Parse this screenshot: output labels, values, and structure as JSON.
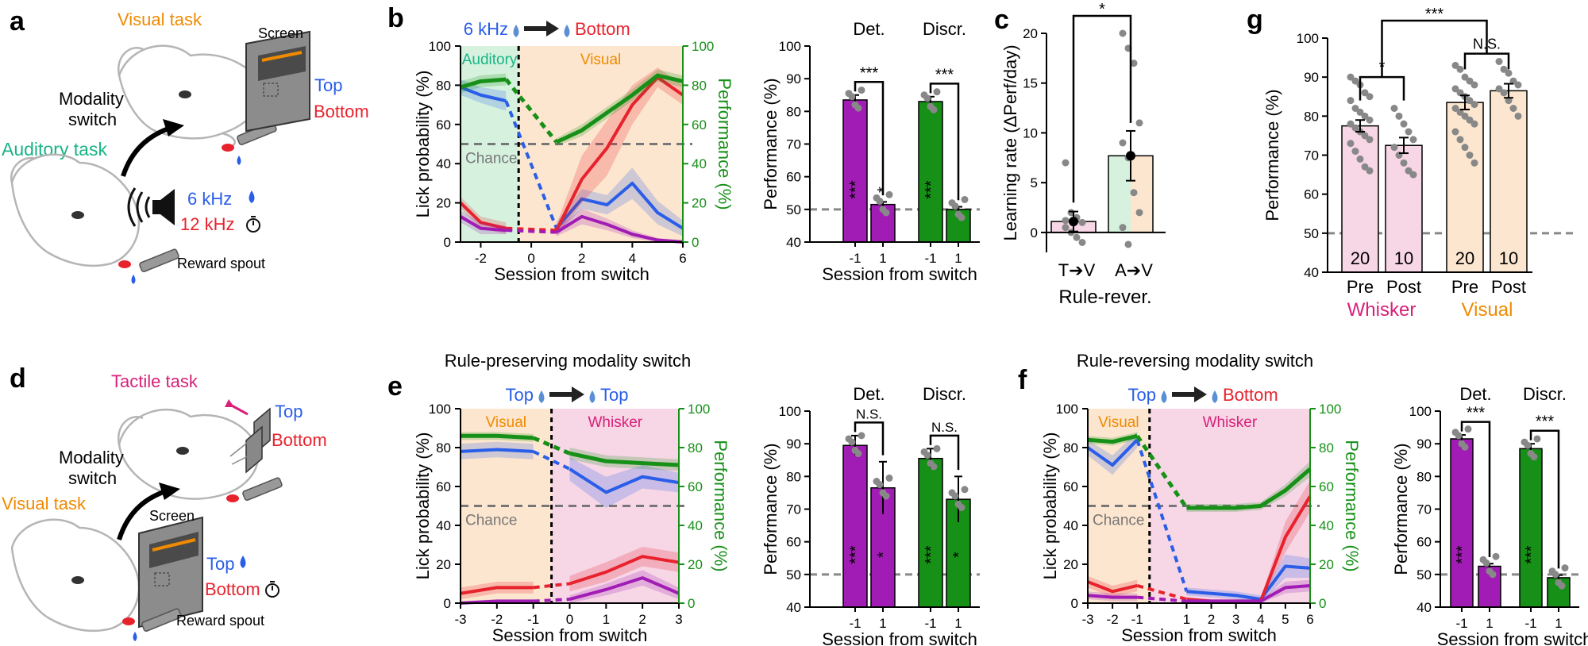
{
  "panel_letters": [
    "a",
    "b",
    "c",
    "d",
    "e",
    "f",
    "g"
  ],
  "colors": {
    "blue": "#2a5ee8",
    "red": "#e8222c",
    "green": "#179018",
    "purple": "#a11cb4",
    "orange": "#f08a00",
    "teal": "#19b486",
    "pink": "#d8207a",
    "gray": "#888888",
    "bg_aud": "#d6f2df",
    "bg_vis": "#fde6cf",
    "bg_whk": "#f7d6e6"
  },
  "schematic_a": {
    "visual_task": "Visual task",
    "screen": "Screen",
    "top": "Top",
    "bottom": "Bottom",
    "modality_switch_1": "Modality",
    "modality_switch_2": "switch",
    "auditory_task": "Auditory task",
    "tone_6k": "6 kHz",
    "tone_12k": "12 kHz",
    "reward_spout": "Reward spout"
  },
  "schematic_d": {
    "tactile_task": "Tactile task",
    "top": "Top",
    "bottom": "Bottom",
    "modality_switch_1": "Modality",
    "modality_switch_2": "switch",
    "visual_task": "Visual task",
    "screen": "Screen",
    "reward_spout": "Reward spout"
  },
  "legend_b": {
    "left": "6 kHz",
    "right": "Bottom"
  },
  "legend_e": {
    "left": "Top",
    "right": "Top"
  },
  "legend_f": {
    "left": "Top",
    "right": "Bottom"
  },
  "chart_data": [
    {
      "id": "b-line",
      "type": "line",
      "title": "",
      "xlabel": "Session from switch",
      "ylabel": "Lick probability (%)",
      "y2label": "Performance (%)",
      "xlim": [
        -2.8,
        6
      ],
      "ylim": [
        0,
        100
      ],
      "xticks": [
        "-2",
        "0",
        "2",
        "4",
        "6"
      ],
      "xtick_values": [
        -2,
        0,
        2,
        4,
        6
      ],
      "yticks": [
        "0",
        "20",
        "40",
        "60",
        "80",
        "100"
      ],
      "switch_at": -0.5,
      "regions": [
        {
          "label": "Auditory",
          "from": -2.8,
          "to": -0.5,
          "color": "bg_aud"
        },
        {
          "label": "Visual",
          "from": -0.5,
          "to": 6,
          "color": "bg_vis"
        }
      ],
      "chance_label": "Chance",
      "chance": 50,
      "series": [
        {
          "name": "Lick 6 kHz",
          "color": "blue",
          "x": [
            -2.8,
            -2,
            -1,
            1,
            2,
            3,
            4,
            5,
            6
          ],
          "y": [
            79,
            75,
            72,
            7,
            22,
            19,
            30,
            15,
            7
          ],
          "err": [
            4,
            4,
            5,
            3,
            5,
            5,
            8,
            6,
            4
          ]
        },
        {
          "name": "Lick 12 kHz / Bottom",
          "color": "red",
          "x": [
            -2.8,
            -2,
            -1,
            1,
            2,
            3,
            4,
            5,
            6
          ],
          "y": [
            20,
            10,
            7,
            6,
            32,
            48,
            70,
            84,
            75
          ],
          "err": [
            3,
            3,
            3,
            3,
            12,
            14,
            10,
            5,
            5
          ]
        },
        {
          "name": "Lick 12 kHz / Top",
          "color": "purple",
          "x": [
            -2.8,
            -2,
            -1,
            1,
            2,
            3,
            4,
            5,
            6
          ],
          "y": [
            13,
            7,
            6,
            5,
            13,
            9,
            4,
            1,
            0
          ],
          "err": [
            3,
            3,
            2,
            2,
            4,
            3,
            2,
            1,
            1
          ]
        },
        {
          "name": "Performance",
          "color": "green",
          "x": [
            -2.8,
            -2,
            -1,
            1,
            2,
            3,
            4,
            5,
            6
          ],
          "y": [
            79,
            82,
            83,
            51,
            57,
            66,
            75,
            85,
            82
          ],
          "err": [
            3,
            3,
            3,
            2,
            3,
            3,
            3,
            3,
            3
          ]
        }
      ]
    },
    {
      "id": "b-bar",
      "type": "bar",
      "title": "",
      "xlabel": "Session from switch",
      "ylabel": "Performance (%)",
      "ylim": [
        40,
        100
      ],
      "yticks": [
        "40",
        "50",
        "60",
        "70",
        "80",
        "90",
        "100"
      ],
      "groups": [
        "Det.",
        "Discr."
      ],
      "categories": [
        "-1",
        "1",
        "-1",
        "1"
      ],
      "values": [
        83.5,
        51.5,
        83,
        50
      ],
      "errors": [
        1.5,
        0.8,
        1.5,
        0.8
      ],
      "bar_colors": [
        "purple",
        "purple",
        "green",
        "green"
      ],
      "inner_marks": [
        "***",
        "*",
        "***",
        ""
      ],
      "comparisons": [
        {
          "from": 0,
          "to": 1,
          "label": "***"
        },
        {
          "from": 2,
          "to": 3,
          "label": "***"
        }
      ]
    },
    {
      "id": "c",
      "type": "bar",
      "title": "",
      "xlabel": "Rule-rever.",
      "ylabel": "Learning rate (ΔPerf/day)",
      "ylim": [
        -2,
        20
      ],
      "yticks": [
        "0",
        "5",
        "10",
        "15",
        "20"
      ],
      "ytick_values": [
        0,
        5,
        10,
        15,
        20
      ],
      "categories": [
        "T➔V",
        "A➔V"
      ],
      "values": [
        1.1,
        7.7
      ],
      "errors": [
        1.0,
        2.5
      ],
      "points": [
        [
          7,
          2,
          1.5,
          1,
          0.5,
          0,
          -0.5,
          -1,
          1.2
        ],
        [
          20,
          18.5,
          17,
          11,
          9,
          7.5,
          4,
          2,
          0.5,
          -1.2
        ]
      ],
      "comparisons": [
        {
          "from": 0,
          "to": 1,
          "label": "*"
        }
      ]
    },
    {
      "id": "g",
      "type": "bar",
      "title": "",
      "xlabel": "",
      "ylabel": "Performance (%)",
      "ylim": [
        40,
        100
      ],
      "yticks": [
        "40",
        "50",
        "60",
        "70",
        "80",
        "90",
        "100"
      ],
      "categories": [
        "Pre",
        "Post",
        "Pre",
        "Post"
      ],
      "group_labels": [
        "Whisker",
        "Visual"
      ],
      "values": [
        77.5,
        72.5,
        83.5,
        86.5
      ],
      "errors": [
        1.5,
        2.0,
        1.8,
        1.8
      ],
      "n_labels": [
        "20",
        "10",
        "20",
        "10"
      ],
      "points": [
        [
          90,
          89,
          88,
          86,
          85,
          84,
          82,
          81,
          80,
          79,
          78,
          77,
          76,
          75,
          74,
          73,
          71,
          69,
          67,
          66
        ],
        [
          82,
          80,
          78,
          76,
          74,
          72,
          70,
          68,
          66,
          65
        ],
        [
          93,
          92,
          90,
          89,
          88,
          87,
          86,
          85,
          84,
          83,
          82,
          81,
          80,
          79,
          78,
          76,
          74,
          72,
          70,
          68
        ],
        [
          94,
          92,
          91,
          89,
          88,
          87,
          86,
          84,
          82,
          80
        ]
      ],
      "chance": 50,
      "comparisons": [
        {
          "from": 0,
          "to": 1,
          "label": "*"
        },
        {
          "from": 2,
          "to": 3,
          "label": "N.S."
        },
        {
          "from": 0.5,
          "to": 2.5,
          "label": "***"
        }
      ]
    },
    {
      "id": "e-line",
      "type": "line",
      "title": "Rule-preserving modality switch",
      "xlabel": "Session from switch",
      "ylabel": "Lick probability (%)",
      "y2label": "Performance (%)",
      "xlim": [
        -3,
        3
      ],
      "ylim": [
        0,
        100
      ],
      "xticks": [
        "-3",
        "-2",
        "-1",
        "0",
        "1",
        "2",
        "3"
      ],
      "xtick_values": [
        -3,
        -2,
        -1,
        0,
        1,
        2,
        3
      ],
      "yticks": [
        "0",
        "20",
        "40",
        "60",
        "80",
        "100"
      ],
      "switch_at": -0.5,
      "regions": [
        {
          "label": "Visual",
          "from": -3,
          "to": -0.5,
          "color": "bg_vis"
        },
        {
          "label": "Whisker",
          "from": -0.5,
          "to": 3,
          "color": "bg_whk"
        }
      ],
      "chance_label": "Chance",
      "chance": 50,
      "series": [
        {
          "name": "Lick Top",
          "color": "blue",
          "x": [
            -3,
            -2,
            -1,
            0,
            1,
            2,
            3
          ],
          "y": [
            78,
            79,
            78,
            69,
            57,
            65,
            62
          ],
          "err": [
            4,
            4,
            4,
            6,
            8,
            6,
            5
          ]
        },
        {
          "name": "Performance",
          "color": "green",
          "x": [
            -3,
            -2,
            -1,
            0,
            1,
            2,
            3
          ],
          "y": [
            86,
            86,
            85,
            77,
            73,
            72,
            71
          ],
          "err": [
            2,
            2,
            2,
            3,
            3,
            3,
            3
          ]
        },
        {
          "name": "Lick Bottom (red)",
          "color": "red",
          "x": [
            -3,
            -2,
            -1,
            0,
            1,
            2,
            3
          ],
          "y": [
            5,
            8,
            8,
            10,
            16,
            24,
            21
          ],
          "err": [
            3,
            3,
            3,
            4,
            5,
            5,
            5
          ]
        },
        {
          "name": "Lick Bottom (purple)",
          "color": "purple",
          "x": [
            -3,
            -2,
            -1,
            0,
            1,
            2,
            3
          ],
          "y": [
            0,
            1,
            1,
            2,
            7,
            13,
            5
          ],
          "err": [
            1,
            1,
            1,
            2,
            3,
            4,
            3
          ]
        }
      ]
    },
    {
      "id": "e-bar",
      "type": "bar",
      "title": "",
      "xlabel": "Session from switch",
      "ylabel": "Performance (%)",
      "ylim": [
        40,
        100
      ],
      "yticks": [
        "40",
        "50",
        "60",
        "70",
        "80",
        "90",
        "100"
      ],
      "groups": [
        "Det.",
        "Discr."
      ],
      "categories": [
        "-1",
        "1",
        "-1",
        "1"
      ],
      "values": [
        89.5,
        76.5,
        85.5,
        73
      ],
      "errors": [
        3,
        8,
        3,
        7
      ],
      "bar_colors": [
        "purple",
        "purple",
        "green",
        "green"
      ],
      "inner_marks": [
        "***",
        "*",
        "***",
        "*"
      ],
      "comparisons": [
        {
          "from": 0,
          "to": 1,
          "label": "N.S."
        },
        {
          "from": 2,
          "to": 3,
          "label": "N.S."
        }
      ]
    },
    {
      "id": "f-line",
      "type": "line",
      "title": "Rule-reversing modality switch",
      "xlabel": "Session from switch",
      "ylabel": "Lick probability (%)",
      "y2label": "Performance (%)",
      "xlim": [
        -3,
        6
      ],
      "ylim": [
        0,
        100
      ],
      "xticks": [
        "-3",
        "-2",
        "-1",
        "1",
        "2",
        "3",
        "4",
        "5",
        "6"
      ],
      "xtick_values": [
        -3,
        -2,
        -1,
        1,
        2,
        3,
        4,
        5,
        6
      ],
      "yticks": [
        "0",
        "20",
        "40",
        "60",
        "80",
        "100"
      ],
      "switch_at": -0.5,
      "regions": [
        {
          "label": "Visual",
          "from": -3,
          "to": -0.5,
          "color": "bg_vis"
        },
        {
          "label": "Whisker",
          "from": -0.5,
          "to": 6,
          "color": "bg_whk"
        }
      ],
      "chance_label": "Chance",
      "chance": 50,
      "series": [
        {
          "name": "Lick Top",
          "color": "blue",
          "x": [
            -3,
            -2,
            -1,
            1,
            2,
            3,
            4,
            5,
            6
          ],
          "y": [
            80,
            71,
            84,
            6,
            5,
            4,
            2,
            19,
            18
          ],
          "err": [
            4,
            5,
            4,
            2,
            2,
            2,
            2,
            6,
            5
          ]
        },
        {
          "name": "Performance",
          "color": "green",
          "x": [
            -3,
            -2,
            -1,
            1,
            2,
            3,
            4,
            5,
            6
          ],
          "y": [
            84,
            83,
            86,
            49,
            49,
            49,
            50,
            58,
            69
          ],
          "err": [
            2,
            2,
            2,
            2,
            2,
            2,
            2,
            3,
            4
          ]
        },
        {
          "name": "Lick Bottom (red)",
          "color": "red",
          "x": [
            -3,
            -2,
            -1,
            1,
            2,
            3,
            4,
            5,
            6
          ],
          "y": [
            11,
            6,
            9,
            2,
            1,
            1,
            1,
            34,
            55
          ],
          "err": [
            3,
            3,
            3,
            1,
            1,
            1,
            1,
            8,
            8
          ]
        },
        {
          "name": "Lick Bottom (purple)",
          "color": "purple",
          "x": [
            -3,
            -2,
            -1,
            1,
            2,
            3,
            4,
            5,
            6
          ],
          "y": [
            4,
            3,
            3,
            1,
            1,
            1,
            1,
            8,
            9
          ],
          "err": [
            2,
            2,
            2,
            1,
            1,
            1,
            1,
            3,
            3
          ]
        }
      ]
    },
    {
      "id": "f-bar",
      "type": "bar",
      "title": "",
      "xlabel": "Session from switch",
      "ylabel": "Performance (%)",
      "ylim": [
        40,
        100
      ],
      "yticks": [
        "40",
        "50",
        "60",
        "70",
        "80",
        "90",
        "100"
      ],
      "groups": [
        "Det.",
        "Discr."
      ],
      "categories": [
        "-1",
        "1",
        "-1",
        "1"
      ],
      "values": [
        91.5,
        52.5,
        88.5,
        49
      ],
      "errors": [
        1.2,
        0.8,
        1.5,
        0.8
      ],
      "bar_colors": [
        "purple",
        "purple",
        "green",
        "green"
      ],
      "inner_marks": [
        "***",
        "",
        "***",
        ""
      ],
      "comparisons": [
        {
          "from": 0,
          "to": 1,
          "label": "***"
        },
        {
          "from": 2,
          "to": 3,
          "label": "***"
        }
      ]
    }
  ]
}
